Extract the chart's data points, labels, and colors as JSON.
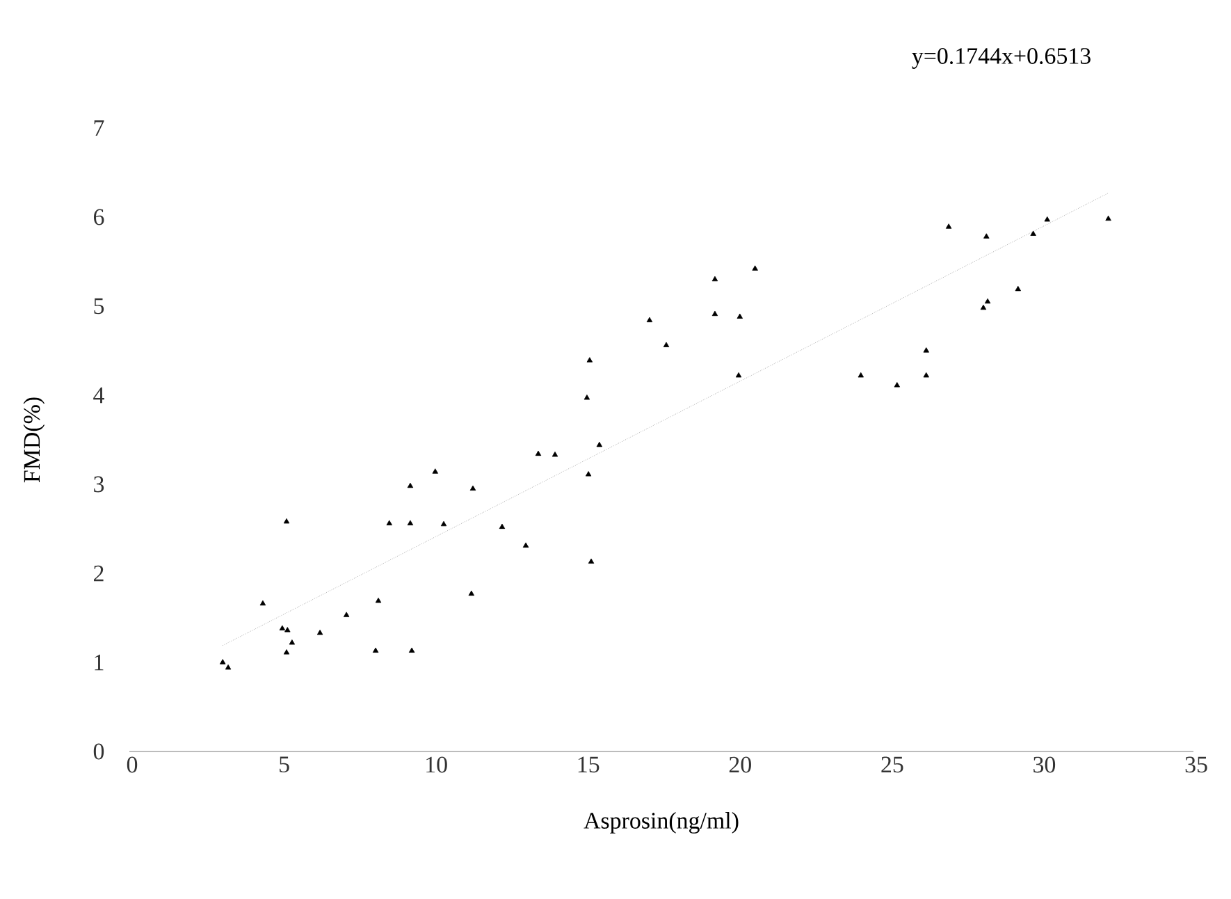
{
  "chart_data": {
    "type": "scatter",
    "xlabel": "Asprosin(ng/ml)",
    "ylabel": "FMD(%)",
    "annotations": [
      "y=0.1744x+0.6513"
    ],
    "xlim": [
      0,
      35
    ],
    "ylim": [
      0,
      7
    ],
    "xticks": [
      0,
      5,
      10,
      15,
      20,
      25,
      30,
      35
    ],
    "yticks": [
      0,
      1,
      2,
      3,
      4,
      5,
      6,
      7
    ],
    "grid": false,
    "marker": "triangle",
    "series": [
      {
        "type": "scatter",
        "color": "#000000",
        "x": [
          3.07,
          3.25,
          4.39,
          5.17,
          5.03,
          5.2,
          5.17,
          5.35,
          6.27,
          7.14,
          8.1,
          8.19,
          8.55,
          9.24,
          9.24,
          9.29,
          10.06,
          10.34,
          11.25,
          11.3,
          12.26,
          13.04,
          13.45,
          14.0,
          15.05,
          15.1,
          15.14,
          15.19,
          15.46,
          17.11,
          17.66,
          19.26,
          19.26,
          20.08,
          20.58,
          20.04,
          24.06,
          25.25,
          26.21,
          26.21,
          26.95,
          28.19,
          28.09,
          28.23,
          29.23,
          29.73,
          30.19,
          32.2
        ],
        "values": [
          1.0,
          0.94,
          1.66,
          2.58,
          1.38,
          1.36,
          1.11,
          1.22,
          1.33,
          1.53,
          1.13,
          1.69,
          2.56,
          2.56,
          2.98,
          1.13,
          3.14,
          2.55,
          1.77,
          2.95,
          2.52,
          2.31,
          3.34,
          3.33,
          3.97,
          3.11,
          4.39,
          2.13,
          3.44,
          4.84,
          4.56,
          5.3,
          4.91,
          4.88,
          5.42,
          4.22,
          4.22,
          4.11,
          4.5,
          4.22,
          5.89,
          5.78,
          4.98,
          5.05,
          5.19,
          5.81,
          5.97,
          5.98
        ]
      },
      {
        "type": "line",
        "color": "#808080",
        "marker": "none",
        "line_style": "dotted",
        "x": [
          3.07,
          32.2
        ],
        "values": [
          1.19,
          6.27
        ]
      }
    ]
  }
}
